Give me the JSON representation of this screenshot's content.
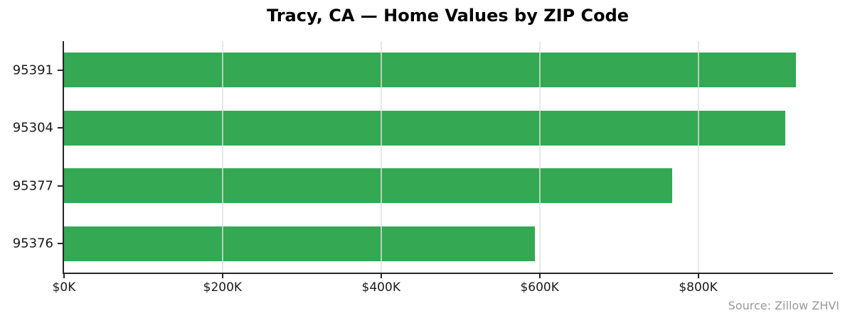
{
  "title": "Tracy, CA — Home Values by ZIP Code",
  "source_note": "Source: Zillow ZHVI",
  "colors": {
    "bar": "#34a853",
    "grid": "#e0e0e0",
    "axis": "#262626",
    "label_text": "#1a1a1a",
    "source_text": "#999999",
    "background": "#ffffff"
  },
  "chart_data": {
    "type": "bar",
    "orientation": "horizontal",
    "title": "Tracy, CA — Home Values by ZIP Code",
    "categories": [
      "95391",
      "95304",
      "95377",
      "95376"
    ],
    "values": [
      923000,
      910000,
      767000,
      594000
    ],
    "xlabel": "",
    "ylabel": "",
    "xlim": [
      0,
      970000
    ],
    "x_ticks": [
      {
        "value": 0,
        "label": "$0K"
      },
      {
        "value": 200000,
        "label": "$200K"
      },
      {
        "value": 400000,
        "label": "$400K"
      },
      {
        "value": 600000,
        "label": "$600K"
      },
      {
        "value": 800000,
        "label": "$800K"
      }
    ],
    "grid": "vertical-only, drawn over bars",
    "legend": "none",
    "bar_color": "#34a853",
    "annotation": "Source: Zillow ZHVI"
  }
}
